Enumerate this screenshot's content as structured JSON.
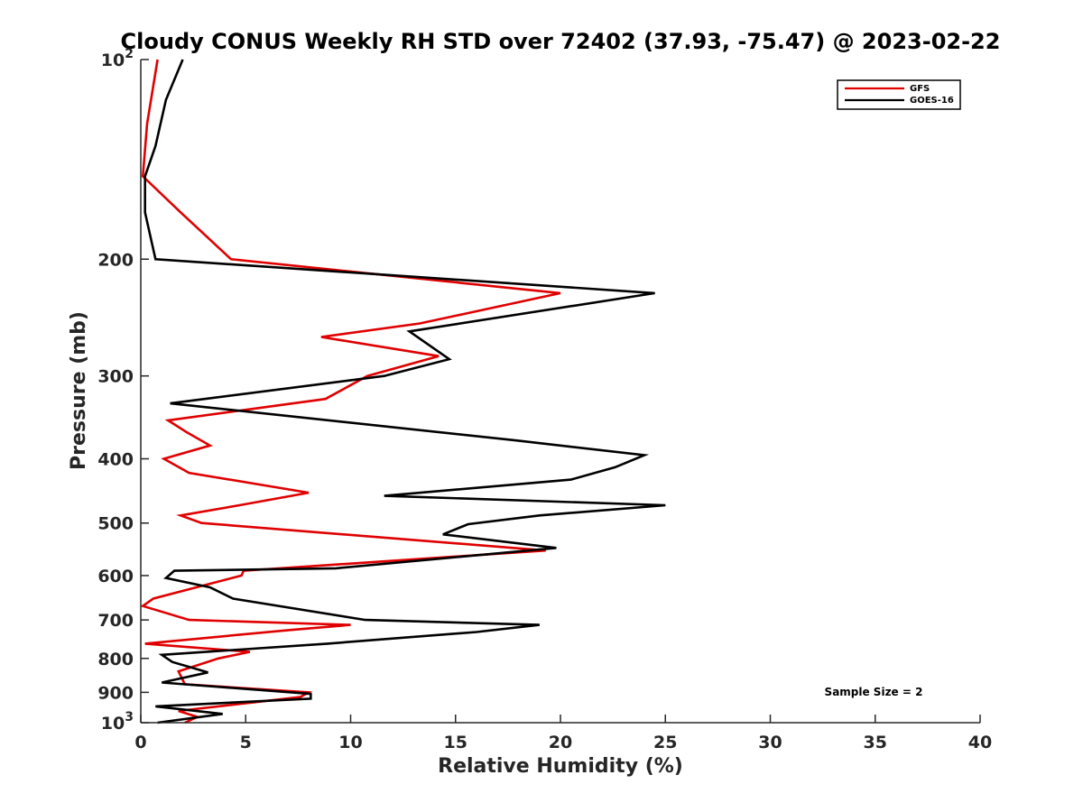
{
  "chart_data": {
    "type": "line",
    "title": "Cloudy CONUS Weekly RH STD over 72402 (37.93, -75.47) @ 2023-02-22",
    "xlabel": "Relative Humidity (%)",
    "ylabel": "Pressure (mb)",
    "xlim": [
      0,
      40
    ],
    "ylim": [
      100,
      1000
    ],
    "y_scale": "log",
    "y_reversed": true,
    "x_ticks": [
      0,
      5,
      10,
      15,
      20,
      25,
      30,
      35,
      40
    ],
    "x_tick_labels": [
      "0",
      "5",
      "10",
      "15",
      "20",
      "25",
      "30",
      "35",
      "40"
    ],
    "y_ticks": [
      100,
      200,
      300,
      400,
      500,
      600,
      700,
      800,
      900,
      1000
    ],
    "y_tick_labels": [
      {
        "base": "10",
        "exp": "2"
      },
      {
        "base": "200",
        "exp": ""
      },
      {
        "base": "300",
        "exp": ""
      },
      {
        "base": "400",
        "exp": ""
      },
      {
        "base": "500",
        "exp": ""
      },
      {
        "base": "600",
        "exp": ""
      },
      {
        "base": "700",
        "exp": ""
      },
      {
        "base": "800",
        "exp": ""
      },
      {
        "base": "900",
        "exp": ""
      },
      {
        "base": "10",
        "exp": "3"
      }
    ],
    "grid": false,
    "legend_position": "top-right",
    "annotation": "Sample Size = 2",
    "series": [
      {
        "name": "GFS",
        "color": "#e00000",
        "points": [
          [
            0.8,
            100
          ],
          [
            0.3,
            125
          ],
          [
            0.1,
            150
          ],
          [
            1.9,
            170
          ],
          [
            4.3,
            200
          ],
          [
            20,
            225
          ],
          [
            13.3,
            250
          ],
          [
            8.6,
            262
          ],
          [
            14.2,
            280
          ],
          [
            10.8,
            300
          ],
          [
            8.8,
            325
          ],
          [
            1.3,
            350
          ],
          [
            2.2,
            365
          ],
          [
            3.3,
            382
          ],
          [
            1.1,
            400
          ],
          [
            2.3,
            420
          ],
          [
            8,
            450
          ],
          [
            4.7,
            470
          ],
          [
            1.9,
            487
          ],
          [
            2.9,
            500
          ],
          [
            19.3,
            550
          ],
          [
            4.9,
            590
          ],
          [
            4.8,
            600
          ],
          [
            0.6,
            650
          ],
          [
            0.1,
            667
          ],
          [
            2.3,
            700
          ],
          [
            10,
            712
          ],
          [
            7.1,
            725
          ],
          [
            0.2,
            760
          ],
          [
            5.2,
            782
          ],
          [
            3.7,
            800
          ],
          [
            1.8,
            837
          ],
          [
            2.1,
            875
          ],
          [
            8,
            900
          ],
          [
            7.6,
            915
          ],
          [
            1.8,
            960
          ],
          [
            2.7,
            980
          ],
          [
            2.1,
            1000
          ]
        ]
      },
      {
        "name": "GOES-16",
        "color": "#000000",
        "points": [
          [
            2,
            100
          ],
          [
            1.2,
            115
          ],
          [
            0.7,
            135
          ],
          [
            0.2,
            150
          ],
          [
            0.2,
            170
          ],
          [
            0.7,
            200
          ],
          [
            24.5,
            225
          ],
          [
            12.8,
            257
          ],
          [
            14.7,
            283
          ],
          [
            11.6,
            300
          ],
          [
            1.4,
            330
          ],
          [
            17.8,
            375
          ],
          [
            24,
            395
          ],
          [
            22.6,
            412
          ],
          [
            20.5,
            430
          ],
          [
            11.6,
            455
          ],
          [
            25,
            470
          ],
          [
            19,
            487
          ],
          [
            15.6,
            502
          ],
          [
            14.4,
            520
          ],
          [
            19.8,
            545
          ],
          [
            9.3,
            585
          ],
          [
            1.6,
            590
          ],
          [
            1.2,
            605
          ],
          [
            3.3,
            625
          ],
          [
            4.4,
            650
          ],
          [
            10.7,
            700
          ],
          [
            19,
            712
          ],
          [
            16,
            730
          ],
          [
            8.9,
            760
          ],
          [
            1,
            790
          ],
          [
            1.5,
            810
          ],
          [
            3.2,
            840
          ],
          [
            1,
            870
          ],
          [
            8.1,
            905
          ],
          [
            8.1,
            920
          ],
          [
            0.7,
            945
          ],
          [
            3.9,
            970
          ],
          [
            0.8,
            1000
          ]
        ]
      }
    ]
  }
}
